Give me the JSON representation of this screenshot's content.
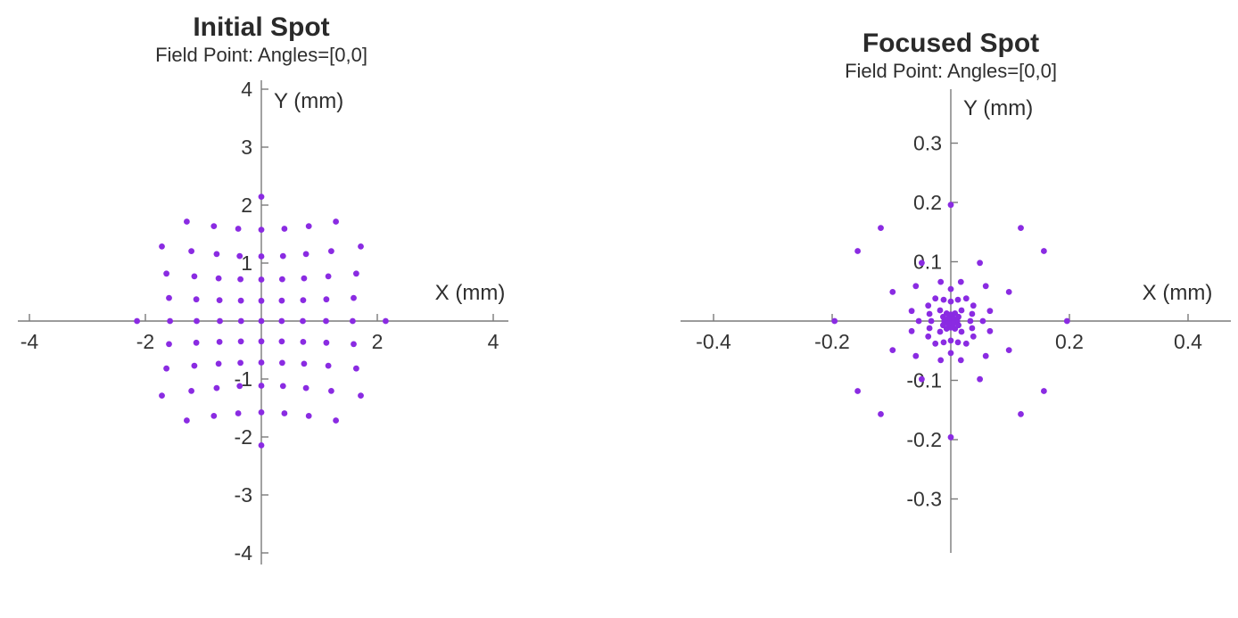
{
  "figure": {
    "background": "#ffffff",
    "marker_color": "#8A2BE2",
    "axis_color": "#7a7a7a",
    "title_color": "#2a2a2a",
    "tick_text_color": "#343434"
  },
  "panels": [
    {
      "title": "Initial Spot",
      "subtitle": "Field Point: Angles=[0,0]",
      "xlabel": "X (mm)",
      "ylabel": "Y (mm)"
    },
    {
      "title": "Focused Spot",
      "subtitle": "Field Point: Angles=[0,0]",
      "xlabel": "X (mm)",
      "ylabel": "Y (mm)"
    }
  ],
  "chart_data": [
    {
      "type": "scatter",
      "title": "Initial Spot",
      "subtitle": "Field Point: Angles=[0,0]",
      "xlabel": "X (mm)",
      "ylabel": "Y (mm)",
      "xlim": [
        -4.25,
        4.3
      ],
      "ylim": [
        -4.2,
        4.15
      ],
      "xticks": [
        -4,
        -2,
        2,
        4
      ],
      "yticks": [
        4,
        3,
        2,
        1,
        -1,
        -2,
        -3,
        -4
      ],
      "grid": false,
      "legend": "none",
      "marker": "dot",
      "points": [
        [
          0,
          0
        ],
        [
          0.35,
          0
        ],
        [
          -0.35,
          0
        ],
        [
          0.715,
          0
        ],
        [
          -0.715,
          0
        ],
        [
          1.116,
          0
        ],
        [
          -1.116,
          0
        ],
        [
          1.575,
          0
        ],
        [
          -1.575,
          0
        ],
        [
          2.144,
          0
        ],
        [
          -2.144,
          0
        ],
        [
          0,
          0.35
        ],
        [
          0,
          -0.35
        ],
        [
          0,
          0.715
        ],
        [
          0,
          -0.715
        ],
        [
          0,
          1.116
        ],
        [
          0,
          -1.116
        ],
        [
          0,
          1.575
        ],
        [
          0,
          -1.575
        ],
        [
          0,
          2.144
        ],
        [
          0,
          -2.144
        ],
        [
          0.352,
          0.352
        ],
        [
          -0.352,
          0.352
        ],
        [
          0.352,
          -0.352
        ],
        [
          -0.352,
          -0.352
        ],
        [
          0.721,
          0.36
        ],
        [
          -0.721,
          0.36
        ],
        [
          0.721,
          -0.36
        ],
        [
          -0.721,
          -0.36
        ],
        [
          1.122,
          0.374
        ],
        [
          -1.122,
          0.374
        ],
        [
          1.122,
          -0.374
        ],
        [
          -1.122,
          -0.374
        ],
        [
          1.593,
          0.398
        ],
        [
          -1.593,
          0.398
        ],
        [
          1.593,
          -0.398
        ],
        [
          -1.593,
          -0.398
        ],
        [
          0.36,
          0.721
        ],
        [
          -0.36,
          0.721
        ],
        [
          0.36,
          -0.721
        ],
        [
          -0.36,
          -0.721
        ],
        [
          0.737,
          0.737
        ],
        [
          -0.737,
          0.737
        ],
        [
          0.737,
          -0.737
        ],
        [
          -0.737,
          -0.737
        ],
        [
          1.156,
          0.77
        ],
        [
          -1.156,
          0.77
        ],
        [
          1.156,
          -0.77
        ],
        [
          -1.156,
          -0.77
        ],
        [
          1.637,
          0.818
        ],
        [
          -1.637,
          0.818
        ],
        [
          1.637,
          -0.818
        ],
        [
          -1.637,
          -0.818
        ],
        [
          0.374,
          1.122
        ],
        [
          -0.374,
          1.122
        ],
        [
          0.374,
          -1.122
        ],
        [
          -0.374,
          -1.122
        ],
        [
          0.77,
          1.156
        ],
        [
          -0.77,
          1.156
        ],
        [
          0.77,
          -1.156
        ],
        [
          -0.77,
          -1.156
        ],
        [
          1.206,
          1.206
        ],
        [
          -1.206,
          1.206
        ],
        [
          1.206,
          -1.206
        ],
        [
          -1.206,
          -1.206
        ],
        [
          1.715,
          1.286
        ],
        [
          -1.715,
          1.286
        ],
        [
          1.715,
          -1.286
        ],
        [
          -1.715,
          -1.286
        ],
        [
          0.398,
          1.593
        ],
        [
          -0.398,
          1.593
        ],
        [
          0.398,
          -1.593
        ],
        [
          -0.398,
          -1.593
        ],
        [
          0.818,
          1.637
        ],
        [
          -0.818,
          1.637
        ],
        [
          0.818,
          -1.637
        ],
        [
          -0.818,
          -1.637
        ],
        [
          1.286,
          1.715
        ],
        [
          -1.286,
          1.715
        ],
        [
          1.286,
          -1.715
        ],
        [
          -1.286,
          -1.715
        ]
      ]
    },
    {
      "type": "scatter",
      "title": "Focused Spot",
      "subtitle": "Field Point: Angles=[0,0]",
      "xlabel": "X (mm)",
      "ylabel": "Y (mm)",
      "xlim": [
        -0.455,
        0.47
      ],
      "ylim": [
        -0.39,
        0.39
      ],
      "xticks": [
        -0.4,
        -0.2,
        0.2,
        0.4
      ],
      "yticks": [
        0.3,
        0.2,
        0.1,
        -0.1,
        -0.2,
        -0.3
      ],
      "grid": false,
      "legend": "none",
      "marker": "dot",
      "points": [
        [
          0,
          0
        ],
        [
          0.004,
          0
        ],
        [
          -0.004,
          0
        ],
        [
          0.011,
          0
        ],
        [
          -0.011,
          0
        ],
        [
          0.033,
          0
        ],
        [
          -0.033,
          0
        ],
        [
          0.054,
          0
        ],
        [
          -0.054,
          0
        ],
        [
          0.196,
          0
        ],
        [
          -0.196,
          0
        ],
        [
          0,
          0.004
        ],
        [
          0,
          -0.004
        ],
        [
          0,
          0.011
        ],
        [
          0,
          -0.011
        ],
        [
          0,
          0.033
        ],
        [
          0,
          -0.033
        ],
        [
          0,
          0.054
        ],
        [
          0,
          -0.054
        ],
        [
          0,
          0.196
        ],
        [
          0,
          -0.196
        ],
        [
          0.004,
          0.004
        ],
        [
          -0.004,
          0.004
        ],
        [
          0.004,
          -0.004
        ],
        [
          -0.004,
          -0.004
        ],
        [
          0.013,
          0.007
        ],
        [
          -0.013,
          0.007
        ],
        [
          0.013,
          -0.007
        ],
        [
          -0.013,
          -0.007
        ],
        [
          0.036,
          0.012
        ],
        [
          -0.036,
          0.012
        ],
        [
          0.036,
          -0.012
        ],
        [
          -0.036,
          -0.012
        ],
        [
          0.066,
          0.017
        ],
        [
          -0.066,
          0.017
        ],
        [
          0.066,
          -0.017
        ],
        [
          -0.066,
          -0.017
        ],
        [
          0.007,
          0.013
        ],
        [
          -0.007,
          0.013
        ],
        [
          0.007,
          -0.013
        ],
        [
          -0.007,
          -0.013
        ],
        [
          0.018,
          0.018
        ],
        [
          -0.018,
          0.018
        ],
        [
          0.018,
          -0.018
        ],
        [
          -0.018,
          -0.018
        ],
        [
          0.038,
          0.026
        ],
        [
          -0.038,
          0.026
        ],
        [
          0.038,
          -0.026
        ],
        [
          -0.038,
          -0.026
        ],
        [
          0.098,
          0.049
        ],
        [
          -0.098,
          0.049
        ],
        [
          0.098,
          -0.049
        ],
        [
          -0.098,
          -0.049
        ],
        [
          0.012,
          0.036
        ],
        [
          -0.012,
          0.036
        ],
        [
          0.012,
          -0.036
        ],
        [
          -0.012,
          -0.036
        ],
        [
          0.026,
          0.038
        ],
        [
          -0.026,
          0.038
        ],
        [
          0.026,
          -0.038
        ],
        [
          -0.026,
          -0.038
        ],
        [
          0.059,
          0.059
        ],
        [
          -0.059,
          0.059
        ],
        [
          0.059,
          -0.059
        ],
        [
          -0.059,
          -0.059
        ],
        [
          0.157,
          0.118
        ],
        [
          -0.157,
          0.118
        ],
        [
          0.157,
          -0.118
        ],
        [
          -0.157,
          -0.118
        ],
        [
          0.017,
          0.066
        ],
        [
          -0.017,
          0.066
        ],
        [
          0.017,
          -0.066
        ],
        [
          -0.017,
          -0.066
        ],
        [
          0.049,
          0.098
        ],
        [
          -0.049,
          0.098
        ],
        [
          0.049,
          -0.098
        ],
        [
          -0.049,
          -0.098
        ],
        [
          0.118,
          0.157
        ],
        [
          -0.118,
          0.157
        ],
        [
          0.118,
          -0.157
        ],
        [
          -0.118,
          -0.157
        ]
      ]
    }
  ]
}
